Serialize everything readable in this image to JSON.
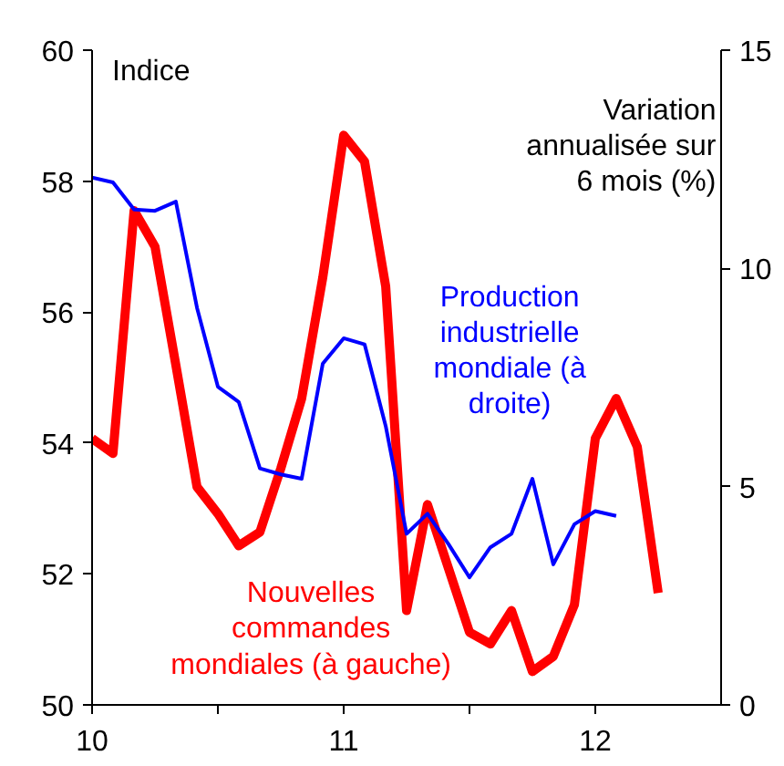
{
  "chart_data": {
    "type": "line",
    "ylabel": "Indice",
    "y2label": "Variation\nannualisée sur\n6 mois (%)",
    "xlim": [
      10,
      12.5
    ],
    "xticks": [
      10,
      {
        "value": 10.5,
        "label": null
      },
      11,
      {
        "value": 11.5,
        "label": null
      },
      12
    ],
    "ylim": [
      50,
      60
    ],
    "yticks": [
      50,
      52,
      54,
      56,
      58,
      60
    ],
    "y2lim": [
      0,
      15
    ],
    "y2ticks": [
      0,
      5,
      10,
      15
    ],
    "legend": false,
    "grid": false,
    "series": [
      {
        "name": "Nouvelles\ncommandes\nmondiales (à gauche)",
        "color": "#ff0000",
        "axis": "y",
        "x": [
          10.0,
          10.083,
          10.167,
          10.25,
          10.333,
          10.417,
          10.5,
          10.583,
          10.667,
          10.75,
          10.833,
          10.917,
          11.0,
          11.083,
          11.167,
          11.25,
          11.333,
          11.417,
          11.5,
          11.583,
          11.667,
          11.75,
          11.833,
          11.917,
          12.0,
          12.083,
          12.167,
          12.25
        ],
        "values": [
          54.07,
          53.84,
          57.55,
          57.0,
          55.19,
          53.33,
          52.92,
          52.43,
          52.64,
          53.61,
          54.68,
          56.53,
          58.7,
          58.3,
          56.39,
          51.44,
          53.06,
          52.08,
          51.11,
          50.93,
          51.44,
          50.51,
          50.74,
          51.53,
          54.07,
          54.68,
          53.94,
          51.71
        ]
      },
      {
        "name": "Production\nindustrielle\nmondiale (à\ndroite)",
        "color": "#0000ff",
        "axis": "y2",
        "x": [
          10.0,
          10.083,
          10.167,
          10.25,
          10.333,
          10.417,
          10.5,
          10.583,
          10.667,
          10.75,
          10.833,
          10.917,
          11.0,
          11.083,
          11.167,
          11.25,
          11.333,
          11.417,
          11.5,
          11.583,
          11.667,
          11.75,
          11.833,
          11.917,
          12.0,
          12.083
        ],
        "values": [
          12.08,
          11.97,
          11.35,
          11.32,
          11.53,
          9.1,
          7.29,
          6.94,
          5.42,
          5.28,
          5.18,
          7.82,
          8.4,
          8.26,
          6.39,
          3.92,
          4.38,
          3.68,
          2.92,
          3.61,
          3.92,
          5.18,
          3.22,
          4.14,
          4.44,
          4.33
        ]
      }
    ]
  }
}
